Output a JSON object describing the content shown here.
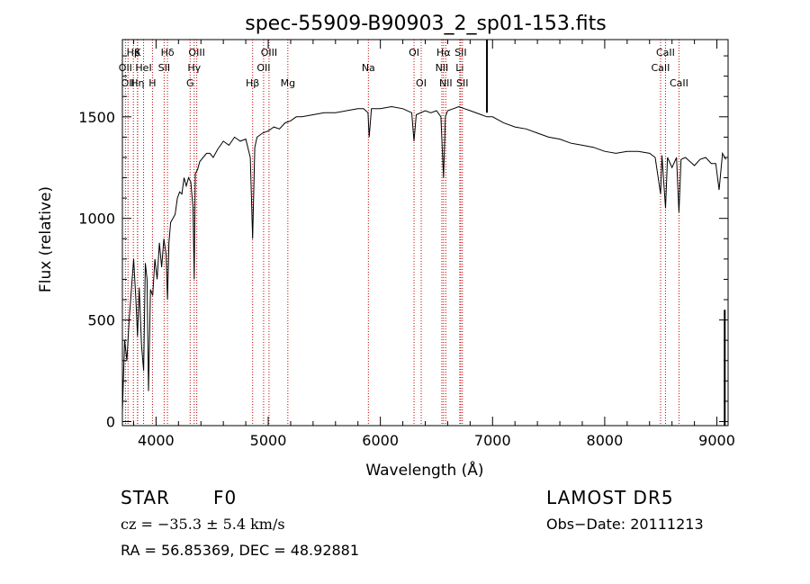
{
  "chart_data": {
    "type": "line",
    "title": "spec-55909-B90903_2_sp01-153.fits",
    "xlabel": "Wavelength (Å)",
    "ylabel": "Flux (relative)",
    "xlim": [
      3700,
      9100
    ],
    "ylim": [
      -20,
      1880
    ],
    "xticks": [
      4000,
      5000,
      6000,
      7000,
      8000,
      9000
    ],
    "yticks": [
      0,
      500,
      1000,
      1500
    ],
    "grid": false,
    "series": [
      {
        "x": [
          3700,
          3720,
          3740,
          3760,
          3780,
          3800,
          3820,
          3835,
          3850,
          3870,
          3889,
          3905,
          3920,
          3933,
          3950,
          3970,
          3990,
          4010,
          4030,
          4050,
          4070,
          4090,
          4102,
          4115,
          4130,
          4150,
          4170,
          4190,
          4210,
          4230,
          4250,
          4270,
          4290,
          4310,
          4330,
          4340,
          4350,
          4370,
          4390,
          4420,
          4450,
          4480,
          4510,
          4550,
          4600,
          4650,
          4700,
          4750,
          4800,
          4840,
          4861,
          4880,
          4900,
          4950,
          5000,
          5050,
          5100,
          5150,
          5200,
          5250,
          5300,
          5400,
          5500,
          5600,
          5700,
          5800,
          5850,
          5890,
          5900,
          5920,
          6000,
          6100,
          6200,
          6280,
          6300,
          6320,
          6400,
          6450,
          6500,
          6540,
          6563,
          6580,
          6600,
          6650,
          6700,
          6750,
          6800,
          6900,
          6950,
          7000,
          7100,
          7200,
          7300,
          7400,
          7500,
          7600,
          7700,
          7800,
          7900,
          8000,
          8100,
          8200,
          8300,
          8400,
          8450,
          8498,
          8510,
          8542,
          8560,
          8600,
          8640,
          8662,
          8680,
          8720,
          8760,
          8800,
          8850,
          8900,
          8950,
          8990,
          9020,
          9050,
          9080
        ],
        "values": [
          50,
          400,
          300,
          500,
          650,
          800,
          600,
          420,
          660,
          380,
          250,
          780,
          700,
          150,
          650,
          620,
          800,
          700,
          880,
          760,
          900,
          820,
          600,
          880,
          980,
          1000,
          1020,
          1100,
          1130,
          1120,
          1200,
          1160,
          1200,
          1180,
          1050,
          700,
          1220,
          1240,
          1280,
          1300,
          1320,
          1320,
          1300,
          1340,
          1380,
          1360,
          1400,
          1380,
          1390,
          1300,
          900,
          1350,
          1400,
          1420,
          1430,
          1450,
          1440,
          1470,
          1480,
          1500,
          1500,
          1510,
          1520,
          1520,
          1530,
          1540,
          1540,
          1520,
          1400,
          1540,
          1540,
          1550,
          1540,
          1520,
          1380,
          1510,
          1530,
          1520,
          1530,
          1500,
          1200,
          1500,
          1530,
          1540,
          1550,
          1540,
          1530,
          1510,
          1500,
          1500,
          1470,
          1450,
          1440,
          1420,
          1400,
          1390,
          1370,
          1360,
          1350,
          1330,
          1320,
          1330,
          1330,
          1320,
          1300,
          1120,
          1310,
          1050,
          1300,
          1250,
          1300,
          1030,
          1290,
          1300,
          1280,
          1260,
          1290,
          1300,
          1270,
          1270,
          1140,
          1320,
          1290
        ]
      }
    ],
    "annotations": {
      "spike": {
        "x": 6950,
        "y": 1520,
        "top": 1880
      },
      "end_spike": {
        "x": 9070,
        "y": 550
      }
    },
    "lines": [
      {
        "label": "Hβ",
        "x": 3798,
        "row": 1
      },
      {
        "label": "K",
        "x": 3835,
        "row": 1
      },
      {
        "label": "Hδ",
        "x": 4102,
        "row": 1
      },
      {
        "label": "OIII",
        "x": 4363,
        "row": 1
      },
      {
        "label": "OIII",
        "x": 5007,
        "row": 1
      },
      {
        "label": "OI",
        "x": 6300,
        "row": 1
      },
      {
        "label": "Hα",
        "x": 6563,
        "row": 1
      },
      {
        "label": "SII",
        "x": 6716,
        "row": 1
      },
      {
        "label": "CaII",
        "x": 8542,
        "row": 1
      },
      {
        "label": "OII",
        "x": 3727,
        "row": 2
      },
      {
        "label": "HeI",
        "x": 3889,
        "row": 2
      },
      {
        "label": "SII",
        "x": 4072,
        "row": 2
      },
      {
        "label": "Hγ",
        "x": 4340,
        "row": 2
      },
      {
        "label": "OII",
        "x": 4959,
        "row": 2
      },
      {
        "label": "Na",
        "x": 5893,
        "row": 2
      },
      {
        "label": "NII",
        "x": 6548,
        "row": 2
      },
      {
        "label": "Li",
        "x": 6708,
        "row": 2
      },
      {
        "label": "CaII",
        "x": 8498,
        "row": 2
      },
      {
        "label": "OII",
        "x": 3750,
        "row": 3
      },
      {
        "label": "Hη",
        "x": 3835,
        "row": 3
      },
      {
        "label": "H",
        "x": 3968,
        "row": 3
      },
      {
        "label": "G",
        "x": 4304,
        "row": 3
      },
      {
        "label": "Hβ",
        "x": 4861,
        "row": 3
      },
      {
        "label": "Mg",
        "x": 5175,
        "row": 3
      },
      {
        "label": "OI",
        "x": 6364,
        "row": 3
      },
      {
        "label": "NII",
        "x": 6583,
        "row": 3
      },
      {
        "label": "SII",
        "x": 6731,
        "row": 3
      },
      {
        "label": "CaII",
        "x": 8662,
        "row": 3
      }
    ]
  },
  "info": {
    "class": "STAR",
    "subclass": "F0",
    "survey": "LAMOST  DR5",
    "cz": "cz = −35.3 ± 5.4 km/s",
    "obs_date": "Obs−Date: 20111213",
    "coords": "RA =  56.85369, DEC =  48.92881"
  },
  "colors": {
    "line_marker": "#c00000",
    "ink": "#000000"
  }
}
